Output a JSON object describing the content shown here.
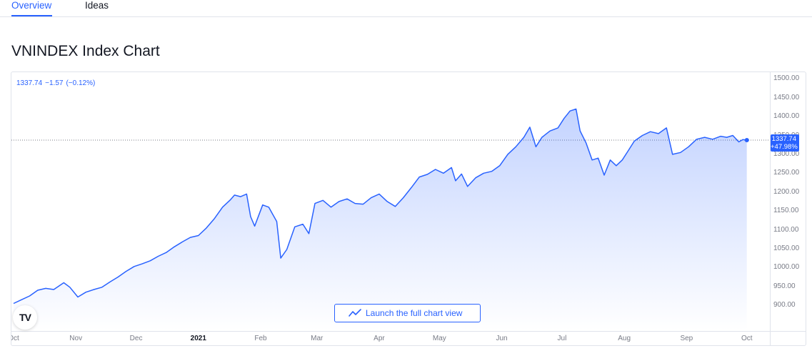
{
  "tabs": [
    {
      "label": "Overview",
      "active": true
    },
    {
      "label": "Ideas",
      "active": false
    }
  ],
  "page_title": "VNINDEX Index Chart",
  "legend": {
    "last": "1337.74",
    "change": "−1.57",
    "change_pct": "(−0.12%)"
  },
  "last_badge": {
    "price": "1337.74",
    "pct": "+47.98%"
  },
  "launch_button": {
    "label": "Launch the full chart view",
    "icon": "line-chart-icon"
  },
  "logo": {
    "text": "TV",
    "icon": "tradingview-logo-icon"
  },
  "colors": {
    "line": "#2962ff",
    "area_top": "#2962ff",
    "text_muted": "#787b86",
    "border": "#e0e3eb"
  },
  "chart_data": {
    "type": "area",
    "title": "",
    "xlabel": "",
    "ylabel": "",
    "ylim": [
      870,
      1510
    ],
    "xlim": [
      "2020-10-01",
      "2021-10-05"
    ],
    "grid": false,
    "y_ticks": [
      "1500.00",
      "1450.00",
      "1400.00",
      "1350.00",
      "1300.00",
      "1250.00",
      "1200.00",
      "1150.00",
      "1100.00",
      "1050.00",
      "1000.00",
      "950.00",
      "900.00"
    ],
    "x_ticks": [
      {
        "label": "Oct",
        "date": "2020-10-01"
      },
      {
        "label": "Nov",
        "date": "2020-11-01"
      },
      {
        "label": "Dec",
        "date": "2020-12-01"
      },
      {
        "label": "2021",
        "date": "2021-01-01",
        "bold": true
      },
      {
        "label": "Feb",
        "date": "2021-02-01"
      },
      {
        "label": "Mar",
        "date": "2021-03-01"
      },
      {
        "label": "Apr",
        "date": "2021-04-01"
      },
      {
        "label": "May",
        "date": "2021-05-01"
      },
      {
        "label": "Jun",
        "date": "2021-06-01"
      },
      {
        "label": "Jul",
        "date": "2021-07-01"
      },
      {
        "label": "Aug",
        "date": "2021-08-01"
      },
      {
        "label": "Sep",
        "date": "2021-09-01"
      },
      {
        "label": "Oct",
        "date": "2021-10-01"
      }
    ],
    "series": [
      {
        "points": [
          [
            "2020-10-01",
            905
          ],
          [
            "2020-10-05",
            915
          ],
          [
            "2020-10-09",
            925
          ],
          [
            "2020-10-13",
            940
          ],
          [
            "2020-10-17",
            945
          ],
          [
            "2020-10-21",
            942
          ],
          [
            "2020-10-26",
            960
          ],
          [
            "2020-10-29",
            948
          ],
          [
            "2020-11-02",
            922
          ],
          [
            "2020-11-06",
            935
          ],
          [
            "2020-11-10",
            942
          ],
          [
            "2020-11-14",
            948
          ],
          [
            "2020-11-18",
            962
          ],
          [
            "2020-11-22",
            975
          ],
          [
            "2020-11-26",
            990
          ],
          [
            "2020-11-30",
            1003
          ],
          [
            "2020-12-04",
            1010
          ],
          [
            "2020-12-08",
            1018
          ],
          [
            "2020-12-12",
            1030
          ],
          [
            "2020-12-16",
            1040
          ],
          [
            "2020-12-20",
            1055
          ],
          [
            "2020-12-24",
            1068
          ],
          [
            "2020-12-28",
            1080
          ],
          [
            "2021-01-01",
            1085
          ],
          [
            "2021-01-05",
            1105
          ],
          [
            "2021-01-09",
            1130
          ],
          [
            "2021-01-13",
            1160
          ],
          [
            "2021-01-17",
            1180
          ],
          [
            "2021-01-19",
            1192
          ],
          [
            "2021-01-22",
            1188
          ],
          [
            "2021-01-25",
            1195
          ],
          [
            "2021-01-27",
            1135
          ],
          [
            "2021-01-29",
            1110
          ],
          [
            "2021-02-02",
            1166
          ],
          [
            "2021-02-05",
            1160
          ],
          [
            "2021-02-09",
            1122
          ],
          [
            "2021-02-11",
            1025
          ],
          [
            "2021-02-14",
            1048
          ],
          [
            "2021-02-18",
            1108
          ],
          [
            "2021-02-22",
            1115
          ],
          [
            "2021-02-25",
            1090
          ],
          [
            "2021-02-28",
            1170
          ],
          [
            "2021-03-04",
            1178
          ],
          [
            "2021-03-08",
            1160
          ],
          [
            "2021-03-12",
            1175
          ],
          [
            "2021-03-16",
            1182
          ],
          [
            "2021-03-20",
            1170
          ],
          [
            "2021-03-24",
            1168
          ],
          [
            "2021-03-28",
            1185
          ],
          [
            "2021-04-01",
            1195
          ],
          [
            "2021-04-05",
            1175
          ],
          [
            "2021-04-09",
            1162
          ],
          [
            "2021-04-13",
            1185
          ],
          [
            "2021-04-17",
            1212
          ],
          [
            "2021-04-21",
            1240
          ],
          [
            "2021-04-25",
            1247
          ],
          [
            "2021-04-29",
            1260
          ],
          [
            "2021-05-03",
            1250
          ],
          [
            "2021-05-07",
            1265
          ],
          [
            "2021-05-09",
            1230
          ],
          [
            "2021-05-12",
            1248
          ],
          [
            "2021-05-15",
            1215
          ],
          [
            "2021-05-19",
            1238
          ],
          [
            "2021-05-23",
            1250
          ],
          [
            "2021-05-27",
            1255
          ],
          [
            "2021-05-31",
            1270
          ],
          [
            "2021-06-04",
            1300
          ],
          [
            "2021-06-08",
            1320
          ],
          [
            "2021-06-12",
            1345
          ],
          [
            "2021-06-15",
            1372
          ],
          [
            "2021-06-18",
            1320
          ],
          [
            "2021-06-21",
            1345
          ],
          [
            "2021-06-25",
            1362
          ],
          [
            "2021-06-29",
            1370
          ],
          [
            "2021-07-02",
            1395
          ],
          [
            "2021-07-05",
            1415
          ],
          [
            "2021-07-08",
            1420
          ],
          [
            "2021-07-10",
            1362
          ],
          [
            "2021-07-13",
            1330
          ],
          [
            "2021-07-16",
            1285
          ],
          [
            "2021-07-19",
            1290
          ],
          [
            "2021-07-22",
            1245
          ],
          [
            "2021-07-25",
            1285
          ],
          [
            "2021-07-28",
            1270
          ],
          [
            "2021-07-31",
            1285
          ],
          [
            "2021-08-03",
            1310
          ],
          [
            "2021-08-06",
            1335
          ],
          [
            "2021-08-10",
            1350
          ],
          [
            "2021-08-14",
            1360
          ],
          [
            "2021-08-18",
            1355
          ],
          [
            "2021-08-22",
            1370
          ],
          [
            "2021-08-25",
            1300
          ],
          [
            "2021-08-29",
            1305
          ],
          [
            "2021-09-02",
            1320
          ],
          [
            "2021-09-06",
            1340
          ],
          [
            "2021-09-10",
            1345
          ],
          [
            "2021-09-14",
            1340
          ],
          [
            "2021-09-18",
            1348
          ],
          [
            "2021-09-21",
            1345
          ],
          [
            "2021-09-24",
            1350
          ],
          [
            "2021-09-27",
            1333
          ],
          [
            "2021-09-29",
            1339
          ],
          [
            "2021-10-01",
            1337.74
          ]
        ]
      }
    ],
    "last_value_line": 1337.74
  }
}
